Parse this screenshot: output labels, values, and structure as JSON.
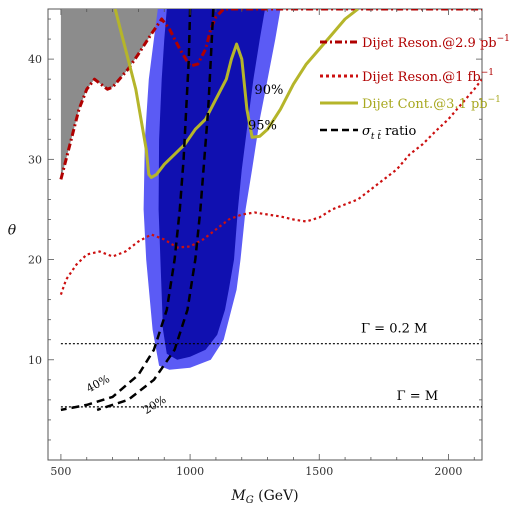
{
  "chart_data": {
    "type": "line",
    "title": "",
    "xlabel": "M_G (GeV)",
    "xlabel_main": "M",
    "xlabel_sub": "G",
    "xlabel_unit": " (GeV)",
    "ylabel": "θ",
    "xlim": [
      450,
      2130
    ],
    "ylim": [
      0,
      45
    ],
    "xticks": [
      500,
      1000,
      1500,
      2000
    ],
    "yticks": [
      10,
      20,
      30,
      40
    ],
    "grid": false,
    "legend_position": "top-right",
    "excluded_region": {
      "name": "excluded",
      "color": "#8c8c8c",
      "points": [
        [
          500,
          45
        ],
        [
          500,
          28
        ],
        [
          530,
          31
        ],
        [
          570,
          35
        ],
        [
          600,
          37
        ],
        [
          630,
          38
        ],
        [
          680,
          37
        ],
        [
          700,
          37.2
        ],
        [
          760,
          39
        ],
        [
          800,
          40.5
        ],
        [
          850,
          42.5
        ],
        [
          890,
          44
        ],
        [
          920,
          43
        ],
        [
          960,
          41
        ],
        [
          1000,
          39.3
        ],
        [
          1030,
          39.5
        ],
        [
          1060,
          41
        ],
        [
          1080,
          43
        ],
        [
          1100,
          44.2
        ],
        [
          1120,
          45
        ]
      ]
    },
    "contours": [
      {
        "label": "95%",
        "color": "#5b5bf5",
        "points": [
          [
            1350,
            45
          ],
          [
            1330,
            42
          ],
          [
            1300,
            38
          ],
          [
            1270,
            34
          ],
          [
            1240,
            29
          ],
          [
            1215,
            25
          ],
          [
            1195,
            20
          ],
          [
            1180,
            17
          ],
          [
            1160,
            15
          ],
          [
            1130,
            12
          ],
          [
            1080,
            10
          ],
          [
            1000,
            9.2
          ],
          [
            920,
            9
          ],
          [
            880,
            9.4
          ],
          [
            855,
            13
          ],
          [
            830,
            20
          ],
          [
            820,
            25
          ],
          [
            825,
            32
          ],
          [
            840,
            38
          ],
          [
            860,
            42
          ],
          [
            875,
            45
          ]
        ]
      },
      {
        "label": "90%",
        "color": "#1010b0",
        "points": [
          [
            1290,
            45
          ],
          [
            1270,
            42
          ],
          [
            1245,
            38
          ],
          [
            1225,
            34
          ],
          [
            1200,
            29
          ],
          [
            1185,
            25
          ],
          [
            1170,
            20
          ],
          [
            1150,
            17
          ],
          [
            1135,
            15
          ],
          [
            1105,
            12.5
          ],
          [
            1060,
            11
          ],
          [
            1000,
            10.3
          ],
          [
            950,
            10
          ],
          [
            910,
            10.6
          ],
          [
            895,
            13
          ],
          [
            885,
            20
          ],
          [
            878,
            25
          ],
          [
            880,
            32
          ],
          [
            890,
            38
          ],
          [
            900,
            42
          ],
          [
            910,
            45
          ]
        ]
      }
    ],
    "series": [
      {
        "name": "Dijet Reson.@2.9 pb",
        "superscript": "−1",
        "style": "dash-dot",
        "color": "#b00000",
        "points": [
          [
            500,
            28
          ],
          [
            530,
            31
          ],
          [
            570,
            35
          ],
          [
            600,
            37
          ],
          [
            630,
            38
          ],
          [
            680,
            37
          ],
          [
            700,
            37.2
          ],
          [
            760,
            39
          ],
          [
            800,
            40.5
          ],
          [
            850,
            42.5
          ],
          [
            890,
            44
          ],
          [
            920,
            43
          ],
          [
            960,
            41
          ],
          [
            1000,
            39.3
          ],
          [
            1030,
            39.5
          ],
          [
            1060,
            41
          ],
          [
            1080,
            43
          ],
          [
            1100,
            44.2
          ],
          [
            1130,
            45
          ],
          [
            2130,
            45
          ]
        ]
      },
      {
        "name": "Dijet Reson.@1 fb",
        "superscript": "−1",
        "style": "dotted",
        "color": "#cc1010",
        "points": [
          [
            500,
            16.5
          ],
          [
            520,
            18
          ],
          [
            560,
            19.5
          ],
          [
            600,
            20.5
          ],
          [
            650,
            20.8
          ],
          [
            700,
            20.3
          ],
          [
            750,
            20.8
          ],
          [
            800,
            21.8
          ],
          [
            850,
            22.5
          ],
          [
            900,
            22
          ],
          [
            950,
            21.2
          ],
          [
            1000,
            21.3
          ],
          [
            1050,
            22
          ],
          [
            1100,
            23
          ],
          [
            1150,
            24
          ],
          [
            1200,
            24.5
          ],
          [
            1250,
            24.7
          ],
          [
            1300,
            24.5
          ],
          [
            1350,
            24.3
          ],
          [
            1400,
            24
          ],
          [
            1450,
            23.8
          ],
          [
            1500,
            24.2
          ],
          [
            1550,
            25
          ],
          [
            1600,
            25.5
          ],
          [
            1650,
            26
          ],
          [
            1700,
            27
          ],
          [
            1750,
            28
          ],
          [
            1800,
            29
          ],
          [
            1850,
            30.5
          ],
          [
            1900,
            31.5
          ],
          [
            1950,
            32.8
          ],
          [
            2000,
            34
          ],
          [
            2050,
            35.5
          ],
          [
            2100,
            37
          ],
          [
            2130,
            38
          ]
        ]
      },
      {
        "name": "Dijet Cont.@3.1 pb",
        "superscript": "−1",
        "style": "solid",
        "color": "#b5b52a",
        "points": [
          [
            710,
            45
          ],
          [
            730,
            43
          ],
          [
            760,
            40
          ],
          [
            790,
            37
          ],
          [
            810,
            34
          ],
          [
            830,
            31
          ],
          [
            840,
            28.5
          ],
          [
            850,
            28.2
          ],
          [
            870,
            28.5
          ],
          [
            900,
            29.5
          ],
          [
            940,
            30.5
          ],
          [
            980,
            31.5
          ],
          [
            1020,
            33
          ],
          [
            1060,
            34
          ],
          [
            1100,
            36
          ],
          [
            1140,
            38
          ],
          [
            1160,
            40
          ],
          [
            1180,
            41.5
          ],
          [
            1200,
            40
          ],
          [
            1220,
            35
          ],
          [
            1240,
            32.2
          ],
          [
            1270,
            32.3
          ],
          [
            1300,
            33
          ],
          [
            1350,
            35
          ],
          [
            1400,
            37.5
          ],
          [
            1450,
            39.5
          ],
          [
            1500,
            41
          ],
          [
            1550,
            42.5
          ],
          [
            1600,
            44
          ],
          [
            1650,
            45
          ]
        ]
      },
      {
        "name": "σ",
        "name_sub": "t t̄",
        "name_suffix": " ratio",
        "style": "dashed",
        "color": "#000000",
        "points": [
          [
            1000,
            45
          ],
          [
            995,
            40
          ],
          [
            985,
            35
          ],
          [
            975,
            30
          ],
          [
            960,
            25
          ],
          [
            940,
            20
          ],
          [
            910,
            15
          ],
          [
            860,
            11
          ],
          [
            800,
            8.5
          ],
          [
            700,
            6.3
          ],
          [
            600,
            5.5
          ],
          [
            500,
            5
          ]
        ]
      },
      {
        "name": "",
        "style": "dashed",
        "color": "#000000",
        "points": [
          [
            1090,
            45
          ],
          [
            1080,
            40
          ],
          [
            1070,
            35
          ],
          [
            1055,
            30
          ],
          [
            1040,
            25
          ],
          [
            1020,
            20
          ],
          [
            990,
            15
          ],
          [
            940,
            11
          ],
          [
            860,
            8
          ],
          [
            760,
            6
          ],
          [
            640,
            5
          ]
        ]
      },
      {
        "name": "",
        "style": "fine-dotted",
        "color": "#000000",
        "points": [
          [
            500,
            11.6
          ],
          [
            2130,
            11.6
          ]
        ]
      },
      {
        "name": "",
        "style": "fine-dotted",
        "color": "#000000",
        "points": [
          [
            500,
            5.3
          ],
          [
            2130,
            5.3
          ]
        ]
      }
    ],
    "annotations": [
      {
        "text": "90%",
        "x": 1305,
        "y": 36.5
      },
      {
        "text": "95%",
        "x": 1280,
        "y": 33.0
      },
      {
        "text": "40%",
        "x": 650,
        "y": 7.3
      },
      {
        "text": "20%",
        "x": 870,
        "y": 5.2
      },
      {
        "text": "Γ = 0.2 M",
        "x": 1790,
        "y": 12.7
      },
      {
        "text": "Γ = M",
        "x": 1880,
        "y": 6.0
      }
    ]
  }
}
